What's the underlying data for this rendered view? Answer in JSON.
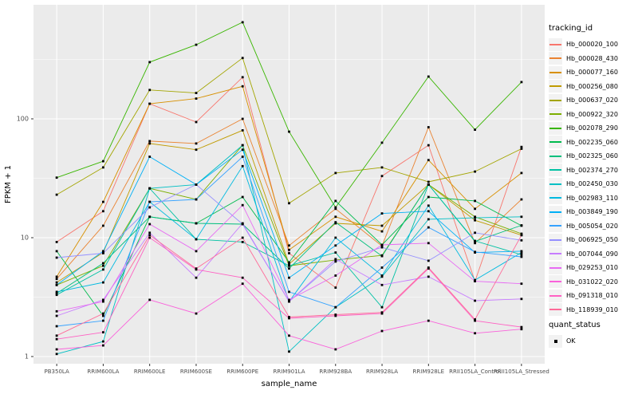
{
  "figure": {
    "background": "#FFFFFF"
  },
  "chart_data": {
    "type": "line",
    "title": "",
    "xlabel": "sample_name",
    "ylabel": "FPKM + 1",
    "y_scale": "log10",
    "y_ticks": [
      "1",
      "10",
      "100"
    ],
    "y_tick_values": [
      1,
      10,
      100
    ],
    "y_minor_values": [
      3.162,
      31.62,
      316.2
    ],
    "ylim": [
      1,
      860
    ],
    "grid": true,
    "legend_position": "right",
    "panel_bg": "#EBEBEB",
    "grid_color": "#FFFFFF",
    "tick_color": "#333333",
    "tick_text_color": "#4D4D4D",
    "axis_title_color": "#000000",
    "point_color": "#000000",
    "point_shape": "square",
    "legend_title": "tracking_id",
    "legend2_title": "quant_status",
    "quant_status_values": [
      "OK"
    ],
    "categories": [
      "PB350LA",
      "RRIM600LA",
      "RRIM600LE",
      "RRIM600SE",
      "RRIM600PE",
      "RRIM901LA",
      "RRIM928BA",
      "RRIM928LA",
      "RRIM928LE",
      "RRII105LA_Control",
      "RRII105LA_Stressed"
    ],
    "series": [
      {
        "name": "Hb_000020_100",
        "color": "#F8766D",
        "values": [
          9.2,
          16.7,
          134,
          94,
          224,
          7.4,
          3.8,
          33,
          60,
          4.3,
          58
        ]
      },
      {
        "name": "Hb_000028_430",
        "color": "#EA8331",
        "values": [
          4.5,
          12.6,
          65,
          62,
          100,
          8.6,
          17.5,
          8.5,
          85,
          9.0,
          21
        ]
      },
      {
        "name": "Hb_000077_160",
        "color": "#D89000",
        "values": [
          4.7,
          20,
          134,
          148,
          188,
          7.9,
          15,
          11.3,
          45,
          17.5,
          35
        ]
      },
      {
        "name": "Hb_000256_080",
        "color": "#C09B00",
        "values": [
          4.2,
          7.5,
          62,
          55,
          80,
          6.0,
          13.2,
          12.6,
          28,
          14,
          10.5
        ]
      },
      {
        "name": "Hb_000637_020",
        "color": "#A3A500",
        "values": [
          23,
          39,
          175,
          165,
          325,
          19.5,
          35,
          39,
          29.5,
          36,
          56
        ]
      },
      {
        "name": "Hb_000922_320",
        "color": "#7CAE00",
        "values": [
          4.0,
          5.8,
          26,
          21,
          60,
          5.8,
          6.5,
          7.1,
          28,
          15,
          10.8
        ]
      },
      {
        "name": "Hb_002078_290",
        "color": "#39B600",
        "values": [
          32,
          44,
          300,
          420,
          650,
          78,
          18,
          63,
          227,
          81,
          204
        ]
      },
      {
        "name": "Hb_002235_060",
        "color": "#00BB4E",
        "values": [
          7.7,
          2.2,
          15,
          13.2,
          22,
          6.2,
          20.4,
          8.7,
          22,
          20.4,
          12.6
        ]
      },
      {
        "name": "Hb_002325_060",
        "color": "#00BF7D",
        "values": [
          3.4,
          6.1,
          15,
          13.2,
          13,
          5.5,
          13.5,
          7.0,
          28,
          9.3,
          12.7
        ]
      },
      {
        "name": "Hb_002374_270",
        "color": "#00C1A3",
        "values": [
          3.3,
          5.4,
          26,
          9.7,
          9.2,
          5.8,
          7.5,
          2.6,
          28,
          9.4,
          7.2
        ]
      },
      {
        "name": "Hb_002450_030",
        "color": "#00BFC4",
        "values": [
          1.05,
          1.34,
          26,
          28,
          60,
          1.1,
          2.6,
          4.7,
          14.3,
          14.7,
          15
        ]
      },
      {
        "name": "Hb_002983_110",
        "color": "#00BAE0",
        "values": [
          3.5,
          4.2,
          20,
          9.7,
          40,
          2.9,
          10,
          4.8,
          18.6,
          4.4,
          7.5
        ]
      },
      {
        "name": "Hb_003849_190",
        "color": "#00B0F6",
        "values": [
          4.0,
          7.7,
          48,
          28,
          55,
          4.6,
          8.6,
          16,
          16.7,
          7.5,
          7.7
        ]
      },
      {
        "name": "Hb_005054_020",
        "color": "#35A2FF",
        "values": [
          1.8,
          2.0,
          20,
          21,
          48,
          3.5,
          2.6,
          5.6,
          12.2,
          7.6,
          6.9
        ]
      },
      {
        "name": "Hb_006925_050",
        "color": "#9590FF",
        "values": [
          6.8,
          7.4,
          18,
          28,
          13,
          2.9,
          6.3,
          8.3,
          6.4,
          11,
          9.5
        ]
      },
      {
        "name": "Hb_007044_090",
        "color": "#C77CFF",
        "values": [
          2.2,
          3.0,
          11,
          4.6,
          13.2,
          2.9,
          6.6,
          4.0,
          4.7,
          2.95,
          3.05
        ]
      },
      {
        "name": "Hb_029253_010",
        "color": "#E76BF3",
        "values": [
          2.4,
          2.9,
          13,
          7.7,
          18.8,
          3.0,
          4.8,
          8.7,
          9.0,
          4.3,
          4.1
        ]
      },
      {
        "name": "Hb_031022_020",
        "color": "#FA62DB",
        "values": [
          1.15,
          1.24,
          3.0,
          2.3,
          4.1,
          1.5,
          1.15,
          1.64,
          2.0,
          1.57,
          1.7
        ]
      },
      {
        "name": "Hb_091318_010",
        "color": "#FF61C3",
        "values": [
          1.4,
          1.6,
          10,
          5.4,
          4.6,
          2.1,
          2.2,
          2.3,
          5.5,
          2.0,
          1.77
        ]
      },
      {
        "name": "Hb_118939_010",
        "color": "#FF6A98",
        "values": [
          1.5,
          2.3,
          10.5,
          5.5,
          10,
          2.15,
          2.25,
          2.35,
          5.6,
          2.05,
          10.5
        ]
      }
    ]
  }
}
